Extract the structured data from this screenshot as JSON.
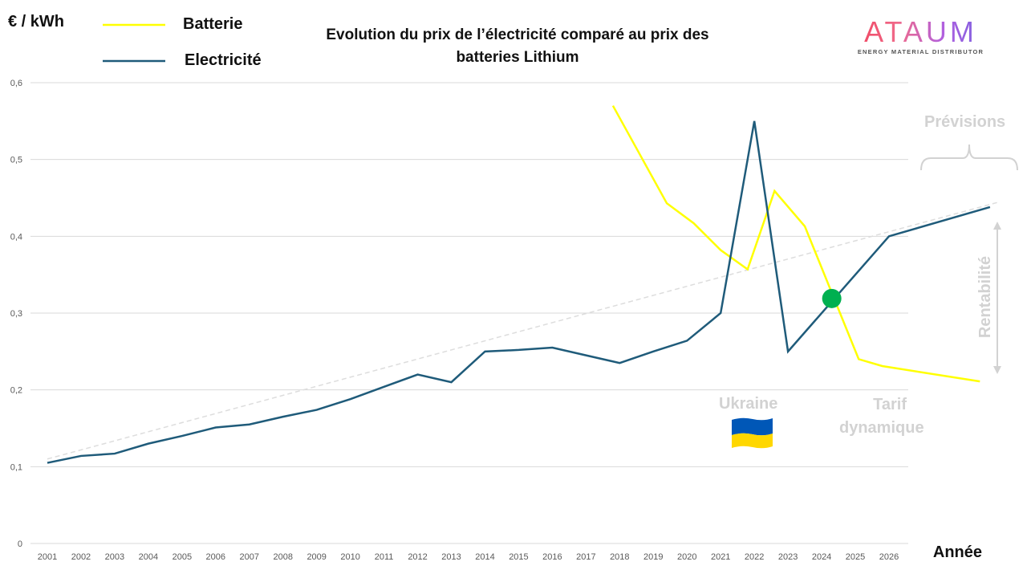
{
  "chart_data": {
    "type": "line",
    "title": "Evolution du prix de l’électricité comparé au prix des batteries Lithium",
    "ylabel": "€ / kWh",
    "xlabel": "Année",
    "ylim": [
      0,
      0.6
    ],
    "yticks": [
      "0",
      "0,1",
      "0,2",
      "0,3",
      "0,4",
      "0,5",
      "0,6"
    ],
    "ytick_values": [
      0,
      0.1,
      0.2,
      0.3,
      0.4,
      0.5,
      0.6
    ],
    "xticks": [
      "2001",
      "2002",
      "2003",
      "2004",
      "2005",
      "2006",
      "2007",
      "2008",
      "2009",
      "2010",
      "2011",
      "2012",
      "2013",
      "2014",
      "2015",
      "2016",
      "2017",
      "2018",
      "2019",
      "2020",
      "2021",
      "2022",
      "2023",
      "2024",
      "2025",
      "2026"
    ],
    "grid": true,
    "legend": "top-left",
    "series": [
      {
        "name": "Batterie",
        "color": "#FFFF00",
        "x": [
          2017.8,
          2019.4,
          2020.2,
          2021.0,
          2021.8,
          2022.6,
          2023.5,
          2025.1,
          2025.8,
          2028.7
        ],
        "values": [
          0.57,
          0.443,
          0.417,
          0.382,
          0.357,
          0.459,
          0.413,
          0.24,
          0.231,
          0.211
        ]
      },
      {
        "name": "Electricité",
        "color": "#1F5B7A",
        "x": [
          2001,
          2002,
          2003,
          2004,
          2005,
          2006,
          2007,
          2008,
          2009,
          2010,
          2011,
          2012,
          2013,
          2014,
          2015,
          2016,
          2017,
          2018,
          2019,
          2020,
          2021,
          2022,
          2023,
          2026,
          2029
        ],
        "values": [
          0.105,
          0.114,
          0.117,
          0.13,
          0.14,
          0.151,
          0.155,
          0.165,
          0.174,
          0.188,
          0.204,
          0.22,
          0.21,
          0.25,
          0.252,
          0.255,
          0.245,
          0.235,
          0.25,
          0.264,
          0.3,
          0.55,
          0.25,
          0.4,
          0.438
        ]
      }
    ],
    "trendline": {
      "color": "#DDDDDD",
      "style": "dashed",
      "x": [
        2001,
        2029.3
      ],
      "values": [
        0.11,
        0.445
      ]
    },
    "crossover_point": {
      "x": 2024.3,
      "value": 0.319,
      "color": "#00B050"
    },
    "annotations": {
      "ukraine": "Ukraine",
      "tarif": "Tarif",
      "dynamique": "dynamique",
      "previsions": "Prévisions",
      "rentabilite": "Rentabilité"
    }
  },
  "logo": {
    "word": "ATAUM",
    "tagline": "ENERGY MATERIAL DISTRIBUTOR"
  },
  "flag": {
    "top_color": "#0057B7",
    "bottom_color": "#FFD700"
  }
}
